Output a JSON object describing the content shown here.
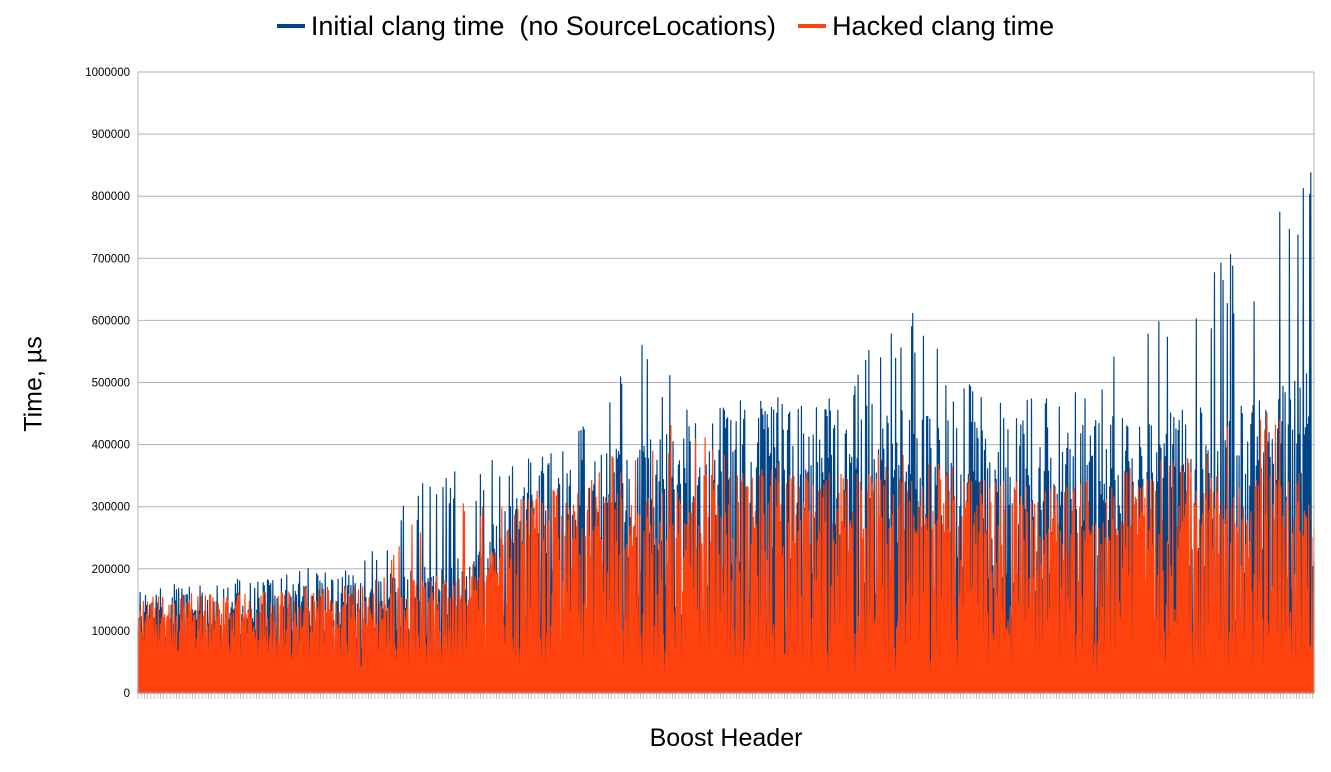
{
  "chart_data": {
    "type": "area",
    "title": "",
    "xlabel": "Boost Header",
    "ylabel": "Time, µs",
    "ylim": [
      0,
      1000000
    ],
    "y_ticks": [
      "0",
      "100000",
      "200000",
      "300000",
      "400000",
      "500000",
      "600000",
      "700000",
      "800000",
      "900000",
      "1000000"
    ],
    "grid": true,
    "legend_position": "top",
    "series": [
      {
        "name": "Initial clang time  (no SourceLocations)",
        "color": "#004586",
        "envelope": {
          "x": [
            0,
            0.02,
            0.05,
            0.1,
            0.14,
            0.18,
            0.2,
            0.24,
            0.28,
            0.33,
            0.36,
            0.4,
            0.43,
            0.46,
            0.5,
            0.52,
            0.55,
            0.6,
            0.65,
            0.7,
            0.74,
            0.78,
            0.8,
            0.83,
            0.86,
            0.88,
            0.9,
            0.93,
            0.94,
            0.96,
            0.98,
            1.0
          ],
          "high": [
            170000,
            175000,
            175000,
            190000,
            200000,
            210000,
            230000,
            350000,
            370000,
            390000,
            400000,
            480000,
            600000,
            500000,
            460000,
            470000,
            470000,
            480000,
            650000,
            500000,
            490000,
            480000,
            500000,
            550000,
            640000,
            600000,
            650000,
            720000,
            650000,
            850000,
            800000,
            930000
          ],
          "typ": [
            145000,
            150000,
            150000,
            155000,
            160000,
            165000,
            170000,
            180000,
            190000,
            300000,
            330000,
            340000,
            350000,
            380000,
            400000,
            420000,
            420000,
            410000,
            400000,
            380000,
            390000,
            370000,
            380000,
            390000,
            380000,
            400000,
            420000,
            420000,
            400000,
            420000,
            440000,
            460000
          ],
          "low": [
            80000,
            70000,
            60000,
            55000,
            50000,
            45000,
            42000,
            40000,
            38000,
            36000,
            34000,
            32000,
            30000,
            28000,
            27000,
            26000,
            25000,
            24000,
            23000,
            22000,
            21000,
            20000,
            20000,
            19000,
            19000,
            18000,
            18000,
            18000,
            17000,
            17000,
            16000,
            16000
          ]
        }
      },
      {
        "name": "Hacked clang time",
        "color": "#ff420e",
        "envelope": {
          "x": [
            0,
            0.02,
            0.05,
            0.1,
            0.14,
            0.18,
            0.2,
            0.24,
            0.28,
            0.33,
            0.36,
            0.4,
            0.43,
            0.46,
            0.5,
            0.52,
            0.55,
            0.6,
            0.65,
            0.7,
            0.74,
            0.78,
            0.8,
            0.83,
            0.86,
            0.88,
            0.9,
            0.93,
            0.94,
            0.96,
            0.98,
            1.0
          ],
          "high": [
            160000,
            160000,
            160000,
            165000,
            170000,
            175000,
            180000,
            300000,
            310000,
            320000,
            340000,
            380000,
            440000,
            430000,
            400000,
            350000,
            350000,
            360000,
            420000,
            360000,
            350000,
            340000,
            340000,
            350000,
            380000,
            380000,
            380000,
            440000,
            400000,
            490000,
            400000,
            360000
          ],
          "typ": [
            130000,
            135000,
            135000,
            140000,
            145000,
            150000,
            150000,
            160000,
            170000,
            280000,
            290000,
            290000,
            270000,
            290000,
            330000,
            330000,
            320000,
            310000,
            300000,
            300000,
            300000,
            290000,
            300000,
            290000,
            300000,
            320000,
            300000,
            320000,
            300000,
            320000,
            300000,
            290000
          ],
          "low": [
            75000,
            65000,
            55000,
            50000,
            45000,
            40000,
            38000,
            36000,
            34000,
            32000,
            30000,
            28000,
            26000,
            25000,
            24000,
            23000,
            22000,
            21000,
            20000,
            19000,
            18000,
            17000,
            17000,
            16000,
            16000,
            16000,
            15000,
            15000,
            15000,
            15000,
            14000,
            14000
          ]
        }
      }
    ]
  }
}
